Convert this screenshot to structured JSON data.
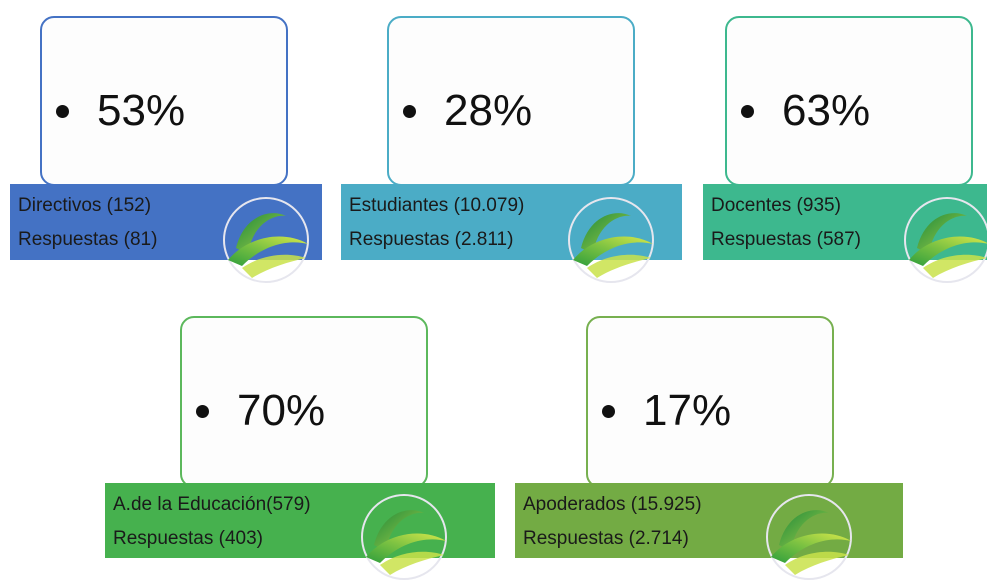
{
  "groups": [
    {
      "percent": "53%",
      "name": "Directivos (152)",
      "responses": "Respuestas (81)",
      "border": "#4472c4",
      "fill": "#4472c4"
    },
    {
      "percent": "28%",
      "name": "Estudiantes (10.079)",
      "responses": "Respuestas (2.811)",
      "border": "#4bacc6",
      "fill": "#4bacc6"
    },
    {
      "percent": "63%",
      "name": "Docentes (935)",
      "responses": "Respuestas (587)",
      "border": "#3db88e",
      "fill": "#3db88e"
    },
    {
      "percent": "70%",
      "name": "A.de la Educación(579)",
      "responses": "Respuestas (403)",
      "border": "#5cb85c",
      "fill": "#46b14e"
    },
    {
      "percent": "17%",
      "name": "Apoderados (15.925)",
      "responses": "Respuestas (2.714)",
      "border": "#77b050",
      "fill": "#73ab44"
    }
  ],
  "logo_icon": "leaf-swoosh-icon"
}
